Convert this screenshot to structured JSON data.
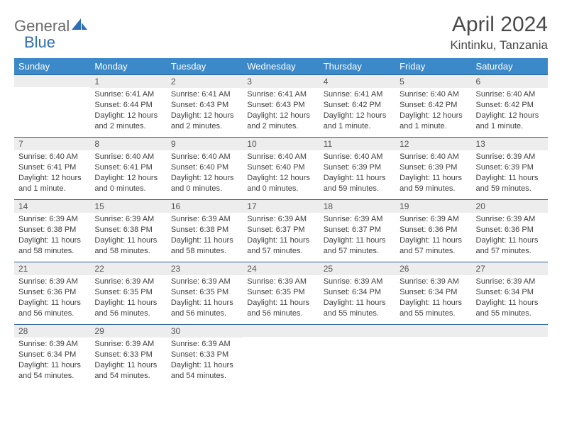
{
  "brand": {
    "text1": "General",
    "text2": "Blue",
    "icon_color": "#2f6fb3",
    "text1_color": "#6a6a6a"
  },
  "title": "April 2024",
  "location": "Kintinku, Tanzania",
  "colors": {
    "header_bg": "#3b89c9",
    "header_text": "#ffffff",
    "daynum_bg": "#ededed",
    "daynum_border": "#2b5f8f",
    "body_text": "#404040"
  },
  "weekdays": [
    "Sunday",
    "Monday",
    "Tuesday",
    "Wednesday",
    "Thursday",
    "Friday",
    "Saturday"
  ],
  "weeks": [
    [
      null,
      {
        "n": "1",
        "sunrise": "6:41 AM",
        "sunset": "6:44 PM",
        "daylight": "12 hours and 2 minutes."
      },
      {
        "n": "2",
        "sunrise": "6:41 AM",
        "sunset": "6:43 PM",
        "daylight": "12 hours and 2 minutes."
      },
      {
        "n": "3",
        "sunrise": "6:41 AM",
        "sunset": "6:43 PM",
        "daylight": "12 hours and 2 minutes."
      },
      {
        "n": "4",
        "sunrise": "6:41 AM",
        "sunset": "6:42 PM",
        "daylight": "12 hours and 1 minute."
      },
      {
        "n": "5",
        "sunrise": "6:40 AM",
        "sunset": "6:42 PM",
        "daylight": "12 hours and 1 minute."
      },
      {
        "n": "6",
        "sunrise": "6:40 AM",
        "sunset": "6:42 PM",
        "daylight": "12 hours and 1 minute."
      }
    ],
    [
      {
        "n": "7",
        "sunrise": "6:40 AM",
        "sunset": "6:41 PM",
        "daylight": "12 hours and 1 minute."
      },
      {
        "n": "8",
        "sunrise": "6:40 AM",
        "sunset": "6:41 PM",
        "daylight": "12 hours and 0 minutes."
      },
      {
        "n": "9",
        "sunrise": "6:40 AM",
        "sunset": "6:40 PM",
        "daylight": "12 hours and 0 minutes."
      },
      {
        "n": "10",
        "sunrise": "6:40 AM",
        "sunset": "6:40 PM",
        "daylight": "12 hours and 0 minutes."
      },
      {
        "n": "11",
        "sunrise": "6:40 AM",
        "sunset": "6:39 PM",
        "daylight": "11 hours and 59 minutes."
      },
      {
        "n": "12",
        "sunrise": "6:40 AM",
        "sunset": "6:39 PM",
        "daylight": "11 hours and 59 minutes."
      },
      {
        "n": "13",
        "sunrise": "6:39 AM",
        "sunset": "6:39 PM",
        "daylight": "11 hours and 59 minutes."
      }
    ],
    [
      {
        "n": "14",
        "sunrise": "6:39 AM",
        "sunset": "6:38 PM",
        "daylight": "11 hours and 58 minutes."
      },
      {
        "n": "15",
        "sunrise": "6:39 AM",
        "sunset": "6:38 PM",
        "daylight": "11 hours and 58 minutes."
      },
      {
        "n": "16",
        "sunrise": "6:39 AM",
        "sunset": "6:38 PM",
        "daylight": "11 hours and 58 minutes."
      },
      {
        "n": "17",
        "sunrise": "6:39 AM",
        "sunset": "6:37 PM",
        "daylight": "11 hours and 57 minutes."
      },
      {
        "n": "18",
        "sunrise": "6:39 AM",
        "sunset": "6:37 PM",
        "daylight": "11 hours and 57 minutes."
      },
      {
        "n": "19",
        "sunrise": "6:39 AM",
        "sunset": "6:36 PM",
        "daylight": "11 hours and 57 minutes."
      },
      {
        "n": "20",
        "sunrise": "6:39 AM",
        "sunset": "6:36 PM",
        "daylight": "11 hours and 57 minutes."
      }
    ],
    [
      {
        "n": "21",
        "sunrise": "6:39 AM",
        "sunset": "6:36 PM",
        "daylight": "11 hours and 56 minutes."
      },
      {
        "n": "22",
        "sunrise": "6:39 AM",
        "sunset": "6:35 PM",
        "daylight": "11 hours and 56 minutes."
      },
      {
        "n": "23",
        "sunrise": "6:39 AM",
        "sunset": "6:35 PM",
        "daylight": "11 hours and 56 minutes."
      },
      {
        "n": "24",
        "sunrise": "6:39 AM",
        "sunset": "6:35 PM",
        "daylight": "11 hours and 56 minutes."
      },
      {
        "n": "25",
        "sunrise": "6:39 AM",
        "sunset": "6:34 PM",
        "daylight": "11 hours and 55 minutes."
      },
      {
        "n": "26",
        "sunrise": "6:39 AM",
        "sunset": "6:34 PM",
        "daylight": "11 hours and 55 minutes."
      },
      {
        "n": "27",
        "sunrise": "6:39 AM",
        "sunset": "6:34 PM",
        "daylight": "11 hours and 55 minutes."
      }
    ],
    [
      {
        "n": "28",
        "sunrise": "6:39 AM",
        "sunset": "6:34 PM",
        "daylight": "11 hours and 54 minutes."
      },
      {
        "n": "29",
        "sunrise": "6:39 AM",
        "sunset": "6:33 PM",
        "daylight": "11 hours and 54 minutes."
      },
      {
        "n": "30",
        "sunrise": "6:39 AM",
        "sunset": "6:33 PM",
        "daylight": "11 hours and 54 minutes."
      },
      null,
      null,
      null,
      null
    ]
  ],
  "labels": {
    "sunrise": "Sunrise:",
    "sunset": "Sunset:",
    "daylight": "Daylight:"
  }
}
